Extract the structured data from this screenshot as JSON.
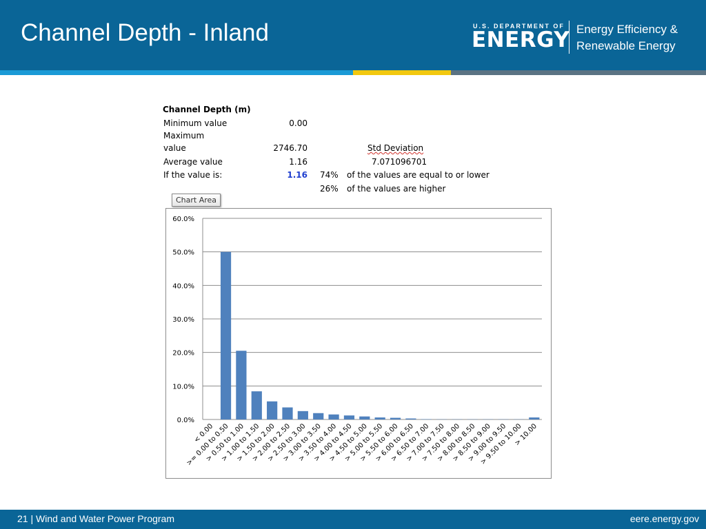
{
  "slide": {
    "title": "Channel Depth - Inland",
    "footer_page": "21",
    "footer_sep": "|",
    "footer_program": "Wind and Water Power Program",
    "footer_url": "eere.energy.gov"
  },
  "logo": {
    "dept_line": "U.S. DEPARTMENT OF",
    "energy": "ENERGY",
    "office_line1": "Energy Efficiency &",
    "office_line2": "Renewable Energy"
  },
  "stats": {
    "heading": "Channel Depth (m)",
    "min_label": "Minimum value",
    "min_value": "0.00",
    "max_label_1": "Maximum",
    "max_label_2": "value",
    "max_value": "2746.70",
    "std_label": "Std Deviation",
    "avg_label": "Average value",
    "avg_value": "1.16",
    "std_value": "7.071096701",
    "if_label": "If the value is:",
    "if_value": "1.16",
    "pct_lower": "74%",
    "pct_lower_text": "of the values are equal to or lower",
    "pct_higher": "26%",
    "pct_higher_text": "of the values are higher"
  },
  "chart_area_label": "Chart Area",
  "colors": {
    "header_blue": "#0a6597",
    "bar_blue": "#4f81bd"
  },
  "chart_data": {
    "type": "bar",
    "categories": [
      "< 0.00",
      ">= 0.00 to 0.50",
      "> 0.50 to 1.00",
      "> 1.00 to 1.50",
      "> 1.50 to 2.00",
      "> 2.00 to 2.50",
      "> 2.50 to 3.00",
      "> 3.00 to 3.50",
      "> 3.50 to 4.00",
      "> 4.00 to 4.50",
      "> 4.50 to 5.00",
      "> 5.00 to 5.50",
      "> 5.50 to 6.00",
      "> 6.00 to 6.50",
      "> 6.50 to 7.00",
      "> 7.00 to 7.50",
      "> 7.50 to 8.00",
      "> 8.00 to 8.50",
      "> 8.50 to 9.00",
      "> 9.00 to 9.50",
      "> 9.50 to 10.00",
      "> 10.00"
    ],
    "values": [
      0.0,
      50.0,
      20.5,
      8.4,
      5.4,
      3.6,
      2.5,
      1.9,
      1.5,
      1.2,
      0.9,
      0.6,
      0.5,
      0.3,
      0.1,
      0.05,
      0.05,
      0.05,
      0.05,
      0.05,
      0.05,
      0.6
    ],
    "yticks": [
      "0.0%",
      "10.0%",
      "20.0%",
      "30.0%",
      "40.0%",
      "50.0%",
      "60.0%"
    ],
    "ylim": [
      0,
      60
    ],
    "ytick_step": 10,
    "grid": true,
    "legend": "none"
  }
}
